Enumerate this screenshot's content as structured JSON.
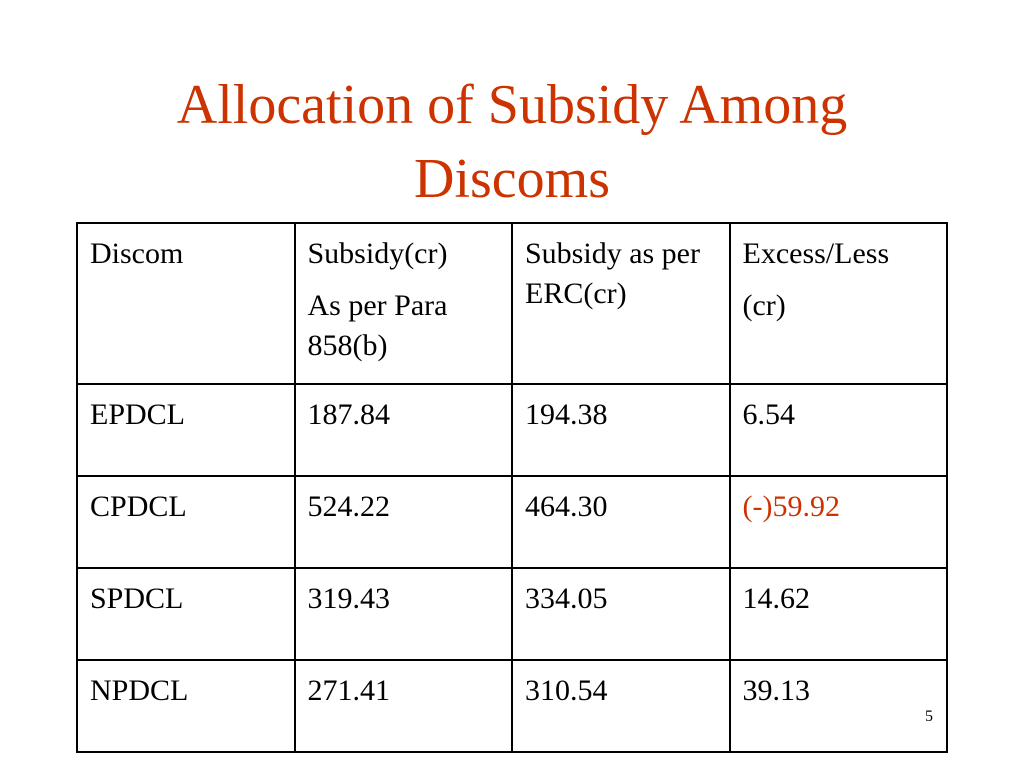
{
  "title": "Allocation of Subsidy Among Discoms",
  "table": {
    "header": [
      [
        "Discom"
      ],
      [
        "Subsidy(cr)",
        "As per Para 858(b)"
      ],
      [
        "Subsidy as per ERC(cr)"
      ],
      [
        "Excess/Less",
        "(cr)"
      ]
    ],
    "rows": [
      [
        "EPDCL",
        "187.84",
        "194.38",
        "6.54"
      ],
      [
        "CPDCL",
        "524.22",
        "464.30",
        "(-)59.92"
      ],
      [
        "SPDCL",
        "319.43",
        "334.05",
        "14.62"
      ],
      [
        "NPDCL",
        "271.41",
        "310.54",
        "39.13"
      ]
    ]
  },
  "slide_number": "5"
}
